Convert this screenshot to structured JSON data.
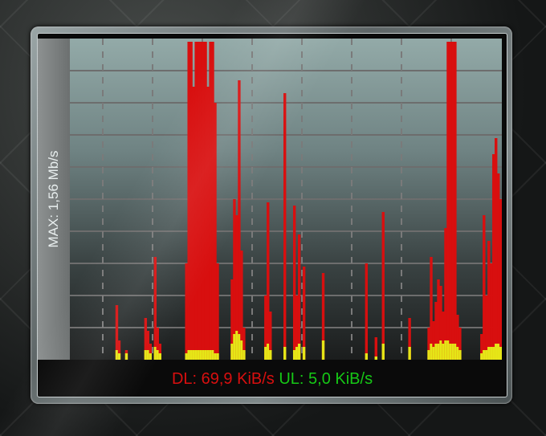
{
  "gadget": {
    "max_label": "MAX: 1,56 Mb/s",
    "dl_text": "DL: 69,9 KiB/s",
    "ul_text": "UL: 5,0 KiB/s"
  },
  "colors": {
    "download": "#d80f0f",
    "upload": "#e6e617",
    "dl_text": "#d80f0f",
    "ul_text": "#16c816"
  },
  "chart_data": {
    "type": "bar",
    "grid": true,
    "ylim": [
      0,
      1
    ],
    "sample_count": 180,
    "series_names": [
      "DL",
      "UL"
    ],
    "samples": [
      [
        19,
        0.17,
        0.03
      ],
      [
        20,
        0.06,
        0.02
      ],
      [
        23,
        0.03,
        0.02
      ],
      [
        31,
        0.13,
        0.03
      ],
      [
        32,
        0.09,
        0.03
      ],
      [
        33,
        0.05,
        0.02
      ],
      [
        35,
        0.32,
        0.04
      ],
      [
        36,
        0.1,
        0.03
      ],
      [
        37,
        0.05,
        0.02
      ],
      [
        48,
        0.3,
        0.02
      ],
      [
        49,
        0.99,
        0.03
      ],
      [
        50,
        0.99,
        0.03
      ],
      [
        51,
        0.85,
        0.03
      ],
      [
        52,
        0.99,
        0.03
      ],
      [
        53,
        0.99,
        0.03
      ],
      [
        54,
        0.99,
        0.03
      ],
      [
        55,
        0.99,
        0.03
      ],
      [
        56,
        0.99,
        0.03
      ],
      [
        57,
        0.85,
        0.03
      ],
      [
        58,
        0.99,
        0.03
      ],
      [
        59,
        0.99,
        0.03
      ],
      [
        60,
        0.8,
        0.02
      ],
      [
        61,
        0.3,
        0.02
      ],
      [
        67,
        0.25,
        0.05
      ],
      [
        68,
        0.5,
        0.08
      ],
      [
        69,
        0.45,
        0.09
      ],
      [
        70,
        0.87,
        0.08
      ],
      [
        71,
        0.34,
        0.06
      ],
      [
        72,
        0.1,
        0.03
      ],
      [
        81,
        0.2,
        0.04
      ],
      [
        82,
        0.49,
        0.05
      ],
      [
        83,
        0.15,
        0.03
      ],
      [
        89,
        0.83,
        0.04
      ],
      [
        93,
        0.48,
        0.03
      ],
      [
        94,
        0.2,
        0.04
      ],
      [
        95,
        0.39,
        0.05
      ],
      [
        97,
        0.29,
        0.04
      ],
      [
        105,
        0.27,
        0.06
      ],
      [
        123,
        0.3,
        0.02
      ],
      [
        127,
        0.07,
        0.01
      ],
      [
        130,
        0.46,
        0.05
      ],
      [
        141,
        0.13,
        0.04
      ],
      [
        149,
        0.1,
        0.03
      ],
      [
        150,
        0.32,
        0.05
      ],
      [
        151,
        0.12,
        0.04
      ],
      [
        152,
        0.18,
        0.05
      ],
      [
        153,
        0.25,
        0.05
      ],
      [
        154,
        0.23,
        0.06
      ],
      [
        155,
        0.15,
        0.05
      ],
      [
        156,
        0.41,
        0.06
      ],
      [
        157,
        0.99,
        0.06
      ],
      [
        158,
        0.99,
        0.05
      ],
      [
        159,
        0.99,
        0.05
      ],
      [
        160,
        0.99,
        0.05
      ],
      [
        161,
        0.14,
        0.04
      ],
      [
        162,
        0.1,
        0.03
      ],
      [
        171,
        0.08,
        0.02
      ],
      [
        172,
        0.45,
        0.03
      ],
      [
        173,
        0.2,
        0.03
      ],
      [
        174,
        0.37,
        0.04
      ],
      [
        175,
        0.3,
        0.04
      ],
      [
        176,
        0.64,
        0.04
      ],
      [
        177,
        0.69,
        0.05
      ],
      [
        178,
        0.58,
        0.05
      ],
      [
        179,
        0.5,
        0.04
      ]
    ]
  }
}
